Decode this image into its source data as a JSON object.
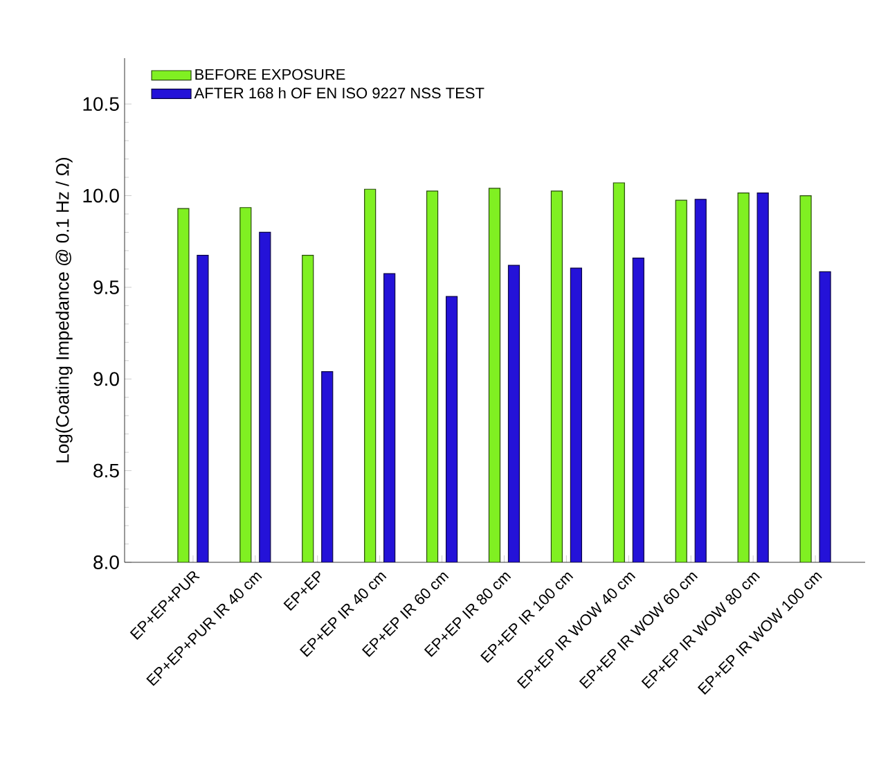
{
  "chart_data": {
    "type": "bar",
    "ylabel": "Log(Coating Impedance @ 0.1 Hz / Ω)",
    "categories": [
      "EP+EP+PUR",
      "EP+EP+PUR IR 40 cm",
      "EP+EP",
      "EP+EP IR 40 cm",
      "EP+EP IR 60 cm",
      "EP+EP IR 80 cm",
      "EP+EP IR 100 cm",
      "EP+EP IR WOW 40 cm",
      "EP+EP IR WOW 60 cm",
      "EP+EP IR WOW 80 cm",
      "EP+EP IR WOW 100 cm"
    ],
    "series": [
      {
        "name": "BEFORE EXPOSURE",
        "color": "#80f022",
        "values": [
          9.93,
          9.935,
          9.675,
          10.035,
          10.025,
          10.04,
          10.025,
          10.07,
          9.975,
          10.015,
          10.0
        ]
      },
      {
        "name": "AFTER 168 h OF EN ISO 9227 NSS TEST",
        "color": "#2412d8",
        "values": [
          9.675,
          9.8,
          9.04,
          9.575,
          9.45,
          9.62,
          9.605,
          9.66,
          9.98,
          10.015,
          9.585
        ]
      }
    ],
    "ylim": [
      8.0,
      10.75
    ],
    "yticks": [
      {
        "value": 8,
        "label": "8.0"
      },
      8.5,
      {
        "value": 9,
        "label": "9.0"
      },
      9.5,
      {
        "value": 10,
        "label": "10.0"
      },
      10.5
    ],
    "legend": "top left",
    "grid": false
  }
}
